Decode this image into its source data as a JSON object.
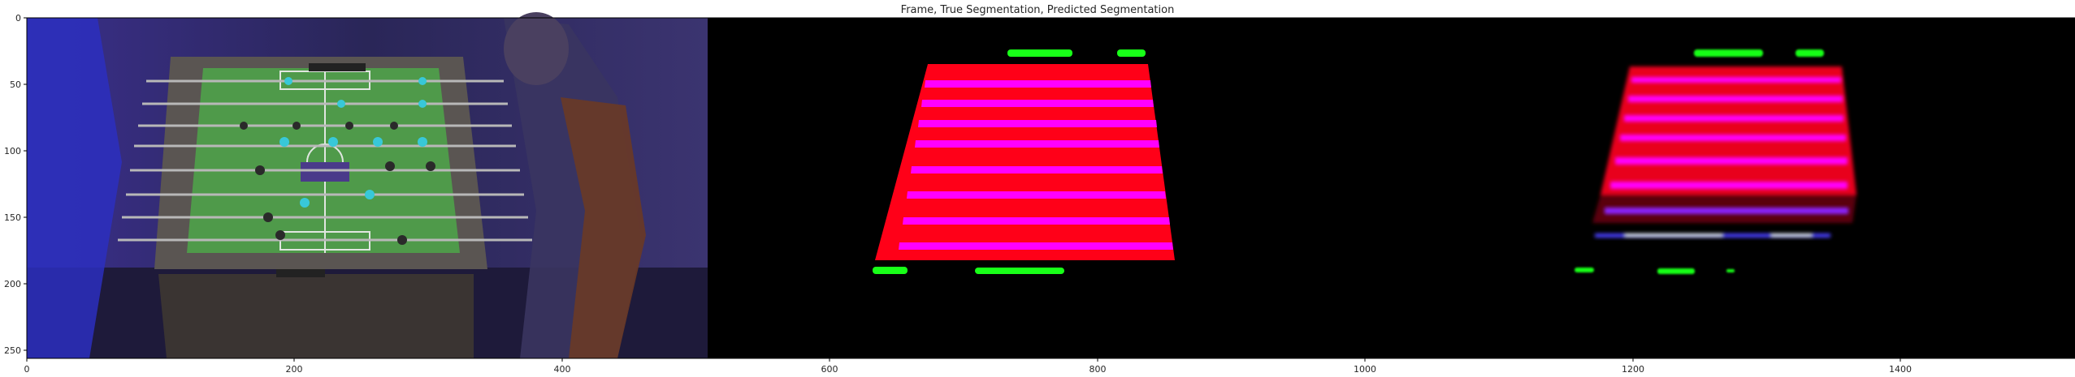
{
  "figure": {
    "title": "Frame, True Segmentation, Predicted Segmentation",
    "x_ticks": [
      "0",
      "200",
      "400",
      "600",
      "800",
      "1000",
      "1200",
      "1400"
    ],
    "y_ticks": [
      "0",
      "50",
      "100",
      "150",
      "200",
      "250"
    ],
    "x_range": [
      0,
      1536
    ],
    "y_range": [
      0,
      256
    ]
  },
  "panels": [
    {
      "name": "frame",
      "content": "foosball game photo"
    },
    {
      "name": "true-segmentation",
      "content": "ground-truth mask"
    },
    {
      "name": "predicted-segmentation",
      "content": "predicted mask"
    }
  ],
  "colors": {
    "field": "#ff0018",
    "rods": "#ff00ff",
    "goals": "#18ff18",
    "background": "#000000"
  }
}
